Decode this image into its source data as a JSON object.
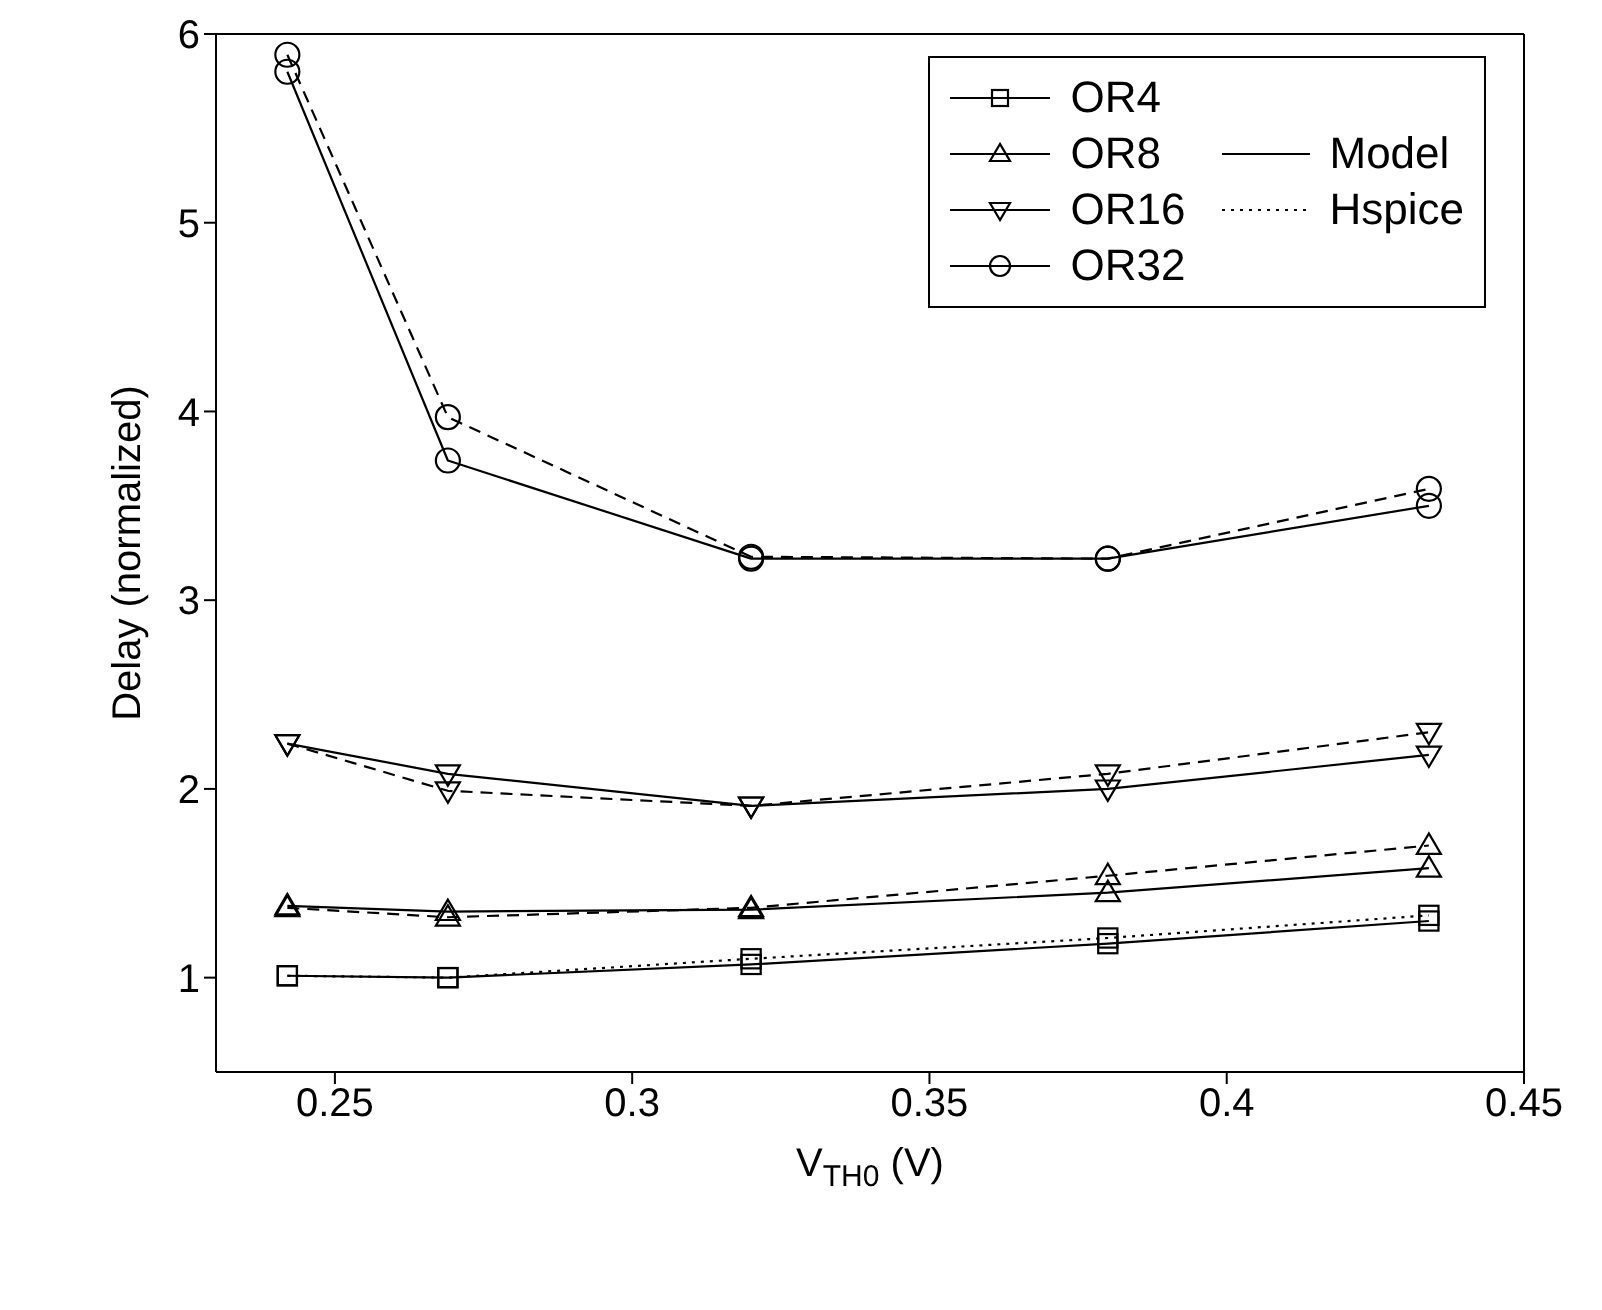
{
  "chart_data": {
    "type": "line",
    "xlabel": "V$_{TH0}$ (V)",
    "ylabel": "Delay (normalized)",
    "x": [
      0.242,
      0.269,
      0.32,
      0.38,
      0.434
    ],
    "xlim": [
      0.23,
      0.45
    ],
    "xticks": [
      0.25,
      0.3,
      0.35,
      0.4,
      0.45
    ],
    "ylim": [
      0.5,
      6
    ],
    "yticks": [
      1,
      2,
      3,
      4,
      5,
      6
    ],
    "legend": "top right",
    "annotations": [
      "Model",
      "Hspice"
    ],
    "series": [
      {
        "name": "OR4",
        "color": "#000000",
        "marker": "square",
        "line_style": "solid",
        "values": [
          1.01,
          1.0,
          1.07,
          1.18,
          1.3
        ]
      },
      {
        "color": "#000000",
        "marker": "square",
        "line_style": "dotted",
        "values": [
          1.01,
          1.0,
          1.1,
          1.21,
          1.33
        ]
      },
      {
        "name": "OR8",
        "color": "#000000",
        "marker": "triangle",
        "line_style": "solid",
        "values": [
          1.38,
          1.35,
          1.36,
          1.45,
          1.58
        ]
      },
      {
        "color": "#000000",
        "marker": "triangle",
        "line_style": "dashed",
        "values": [
          1.37,
          1.32,
          1.37,
          1.54,
          1.7
        ]
      },
      {
        "name": "OR16",
        "color": "#000000",
        "marker": "triangle-down",
        "line_style": "solid",
        "values": [
          2.24,
          2.08,
          1.91,
          2.0,
          2.18
        ]
      },
      {
        "color": "#000000",
        "marker": "triangle-down",
        "line_style": "dashed",
        "values": [
          2.24,
          1.99,
          1.91,
          2.08,
          2.3
        ]
      },
      {
        "name": "OR32",
        "color": "#000000",
        "marker": "circle",
        "line_style": "solid",
        "values": [
          5.8,
          3.74,
          3.22,
          3.22,
          3.5
        ]
      },
      {
        "color": "#000000",
        "marker": "circle",
        "line_style": "dashed",
        "values": [
          5.89,
          3.97,
          3.23,
          3.22,
          3.59
        ]
      }
    ]
  }
}
